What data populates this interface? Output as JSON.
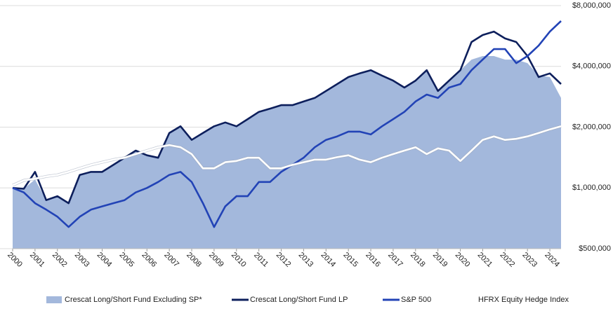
{
  "chart_data": {
    "type": "line",
    "log_scale": true,
    "grid": true,
    "legend": "bottom",
    "x": [
      2000,
      2000.5,
      2001,
      2001.5,
      2002,
      2002.5,
      2003,
      2003.5,
      2004,
      2004.5,
      2005,
      2005.5,
      2006,
      2006.5,
      2007,
      2007.5,
      2008,
      2008.5,
      2009,
      2009.5,
      2010,
      2010.5,
      2011,
      2011.5,
      2012,
      2012.5,
      2013,
      2013.5,
      2014,
      2014.5,
      2015,
      2015.5,
      2016,
      2016.5,
      2017,
      2017.5,
      2018,
      2018.5,
      2019,
      2019.5,
      2020,
      2020.5,
      2021,
      2021.5,
      2022,
      2022.5,
      2023,
      2023.5,
      2024,
      2024.5
    ],
    "xlim": [
      2000,
      2024.5
    ],
    "xticks": [
      2000,
      2001,
      2002,
      2003,
      2004,
      2005,
      2006,
      2007,
      2008,
      2009,
      2010,
      2011,
      2012,
      2013,
      2014,
      2015,
      2016,
      2017,
      2018,
      2019,
      2020,
      2021,
      2022,
      2023,
      2024
    ],
    "ylim": [
      500000,
      8000000
    ],
    "yticks": [
      {
        "value": 500000,
        "label": "$500,000"
      },
      {
        "value": 1000000,
        "label": "$1,000,000"
      },
      {
        "value": 2000000,
        "label": "$2,000,000"
      },
      {
        "value": 4000000,
        "label": "$4,000,000"
      },
      {
        "value": 8000000,
        "label": "$8,000,000"
      }
    ],
    "series": [
      {
        "name": "Crescat Long/Short Fund Excluding SP*",
        "kind": "area",
        "color": "#a3b8dc",
        "values": [
          1000000,
          990000,
          1100000,
          870000,
          910000,
          840000,
          1160000,
          1200000,
          1200000,
          1300000,
          1410000,
          1530000,
          1450000,
          1410000,
          1870000,
          2020000,
          1730000,
          1870000,
          2020000,
          2110000,
          2020000,
          2190000,
          2380000,
          2470000,
          2570000,
          2570000,
          2680000,
          2790000,
          3020000,
          3270000,
          3540000,
          3690000,
          3830000,
          3600000,
          3400000,
          3140000,
          3400000,
          3830000,
          3020000,
          3400000,
          3830000,
          4320000,
          4500000,
          4500000,
          4320000,
          4320000,
          4150000,
          3600000,
          3540000,
          2790000
        ]
      },
      {
        "name": "Crescat Long/Short Fund LP",
        "kind": "line",
        "color": "#0d1f5c",
        "values": [
          1000000,
          990000,
          1200000,
          870000,
          910000,
          840000,
          1160000,
          1200000,
          1200000,
          1300000,
          1410000,
          1530000,
          1450000,
          1410000,
          1870000,
          2020000,
          1730000,
          1870000,
          2020000,
          2110000,
          2020000,
          2190000,
          2380000,
          2470000,
          2570000,
          2570000,
          2680000,
          2790000,
          3020000,
          3270000,
          3540000,
          3690000,
          3830000,
          3600000,
          3400000,
          3140000,
          3400000,
          3830000,
          3020000,
          3400000,
          3830000,
          5280000,
          5720000,
          5950000,
          5500000,
          5280000,
          4500000,
          3540000,
          3690000,
          3270000
        ]
      },
      {
        "name": "S&P 500",
        "kind": "line",
        "color": "#2243b6",
        "values": [
          1000000,
          950000,
          840000,
          780000,
          720000,
          640000,
          720000,
          780000,
          810000,
          840000,
          870000,
          950000,
          1000000,
          1070000,
          1160000,
          1200000,
          1070000,
          840000,
          640000,
          810000,
          910000,
          910000,
          1070000,
          1070000,
          1200000,
          1300000,
          1410000,
          1590000,
          1730000,
          1800000,
          1900000,
          1900000,
          1840000,
          2020000,
          2190000,
          2380000,
          2680000,
          2900000,
          2790000,
          3140000,
          3270000,
          3830000,
          4320000,
          4870000,
          4870000,
          4150000,
          4500000,
          5070000,
          5950000,
          6710000
        ]
      },
      {
        "name": "HFRX Equity Hedge Index",
        "kind": "line",
        "color": "#ffffff",
        "values": [
          1030000,
          1090000,
          1110000,
          1140000,
          1160000,
          1200000,
          1250000,
          1300000,
          1340000,
          1380000,
          1410000,
          1470000,
          1530000,
          1590000,
          1630000,
          1590000,
          1470000,
          1250000,
          1250000,
          1340000,
          1360000,
          1410000,
          1410000,
          1250000,
          1250000,
          1300000,
          1340000,
          1380000,
          1380000,
          1420000,
          1450000,
          1380000,
          1340000,
          1410000,
          1470000,
          1530000,
          1590000,
          1470000,
          1570000,
          1530000,
          1360000,
          1530000,
          1730000,
          1800000,
          1730000,
          1750000,
          1800000,
          1870000,
          1950000,
          2020000
        ]
      }
    ]
  }
}
